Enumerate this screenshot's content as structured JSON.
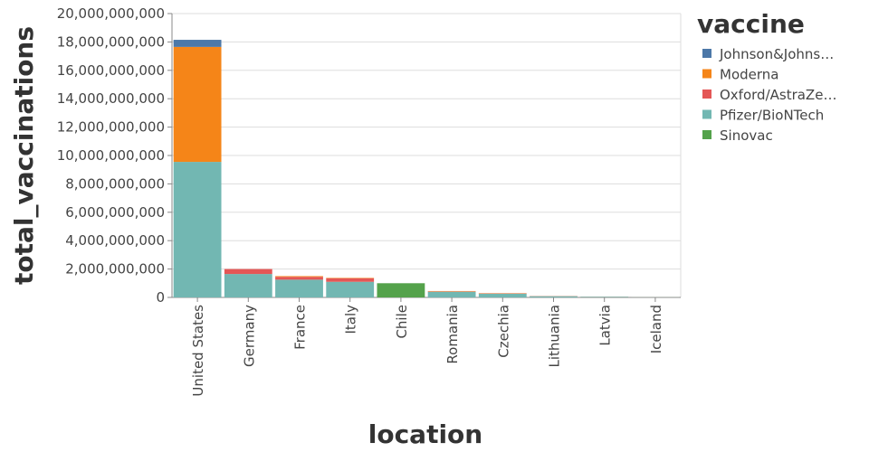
{
  "chart_data": {
    "type": "stacked-bar",
    "x_label": "location",
    "y_label": "total_vaccinations",
    "legend_title": "vaccine",
    "categories": [
      "United States",
      "Germany",
      "France",
      "Italy",
      "Chile",
      "Romania",
      "Czechia",
      "Lithuania",
      "Latvia",
      "Iceland"
    ],
    "series": [
      {
        "name": "Johnson&Johns…",
        "color": "#4c78a8",
        "values": [
          500000000,
          null,
          null,
          null,
          null,
          null,
          null,
          null,
          null,
          null
        ]
      },
      {
        "name": "Moderna",
        "color": "#f58518",
        "values": [
          8100000000,
          null,
          50000000,
          30000000,
          null,
          30000000,
          20000000,
          5000000,
          3000000,
          2000000
        ]
      },
      {
        "name": "Oxford/AstraZe…",
        "color": "#e45756",
        "values": [
          null,
          350000000,
          200000000,
          250000000,
          null,
          20000000,
          20000000,
          10000000,
          7000000,
          3000000
        ]
      },
      {
        "name": "Pfizer/BioNTech",
        "color": "#72b7b2",
        "values": [
          9550000000,
          1650000000,
          1250000000,
          1100000000,
          null,
          400000000,
          260000000,
          85000000,
          50000000,
          15000000
        ]
      },
      {
        "name": "Sinovac",
        "color": "#54a24b",
        "values": [
          null,
          null,
          null,
          null,
          1000000000,
          null,
          null,
          null,
          null,
          null
        ]
      }
    ],
    "ylim": [
      0,
      20000000000
    ],
    "yticks": [
      {
        "value": 0,
        "label": "0"
      },
      {
        "value": 2000000000,
        "label": "2,000,000,000"
      },
      {
        "value": 4000000000,
        "label": "4,000,000,000"
      },
      {
        "value": 6000000000,
        "label": "6,000,000,000"
      },
      {
        "value": 8000000000,
        "label": "8,000,000,000"
      },
      {
        "value": 10000000000,
        "label": "10,000,000,000"
      },
      {
        "value": 12000000000,
        "label": "12,000,000,000"
      },
      {
        "value": 14000000000,
        "label": "14,000,000,000"
      },
      {
        "value": 16000000000,
        "label": "16,000,000,000"
      },
      {
        "value": 18000000000,
        "label": "18,000,000,000"
      },
      {
        "value": 20000000000,
        "label": "20,000,000,000"
      }
    ],
    "grid": true
  }
}
